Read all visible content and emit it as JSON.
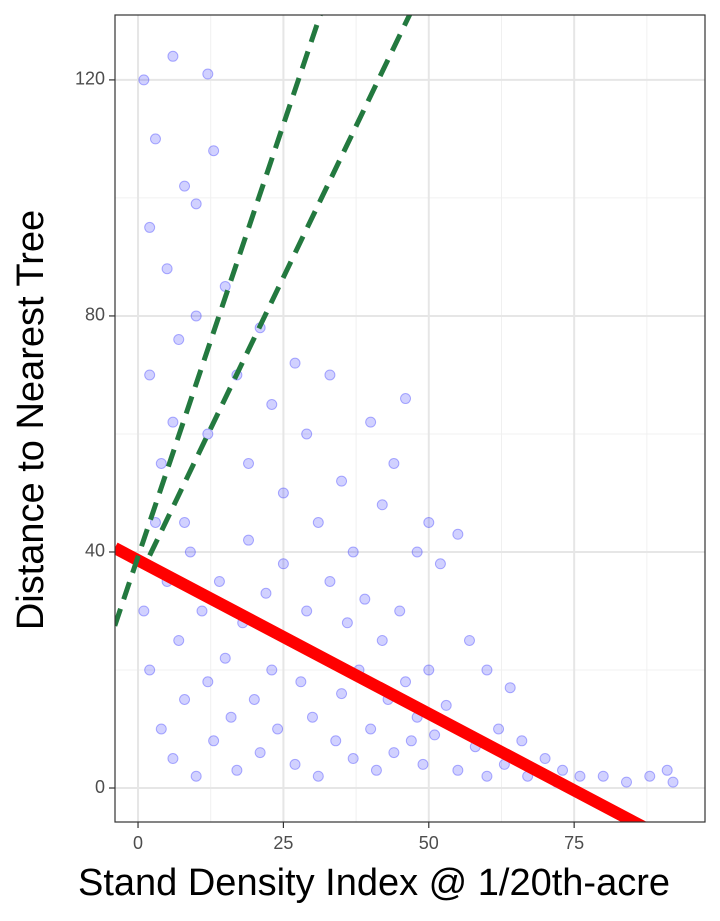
{
  "chart_data": {
    "type": "scatter",
    "x_label": "Stand Density Index @ 1/20th-acre",
    "y_label": "Distance to Nearest Tree",
    "xlim": [
      -3.96,
      97.5
    ],
    "ylim": [
      -5.76,
      131
    ],
    "xticks": [
      0,
      25,
      50,
      75
    ],
    "yticks": [
      0,
      40,
      80,
      120
    ],
    "minor_xticks": [
      12.5,
      37.5,
      62.5,
      87.5
    ],
    "minor_yticks": [
      20,
      60,
      100
    ],
    "grid": true,
    "series": [
      {
        "type": "scatter",
        "color": "#0000ff",
        "x": [
          1,
          2,
          3,
          5,
          6,
          7,
          8,
          10,
          12,
          13,
          2,
          4,
          6,
          8,
          10,
          12,
          15,
          17,
          19,
          21,
          23,
          25,
          27,
          29,
          31,
          33,
          35,
          37,
          40,
          42,
          44,
          46,
          48,
          50,
          52,
          55,
          57,
          60,
          62,
          64,
          66,
          70,
          73,
          76,
          80,
          84,
          88,
          91,
          92,
          1,
          2,
          3,
          4,
          5,
          6,
          7,
          8,
          9,
          10,
          11,
          12,
          13,
          14,
          15,
          16,
          17,
          18,
          19,
          20,
          21,
          22,
          23,
          24,
          25,
          26,
          27,
          28,
          29,
          30,
          31,
          32,
          33,
          34,
          35,
          36,
          37,
          38,
          39,
          40,
          41,
          42,
          43,
          44,
          45,
          46,
          47,
          48,
          49,
          50,
          51,
          53,
          55,
          58,
          60,
          63,
          67,
          72
        ],
        "values": [
          120,
          95,
          110,
          88,
          124,
          76,
          102,
          99,
          121,
          108,
          70,
          55,
          62,
          45,
          80,
          60,
          85,
          70,
          55,
          78,
          65,
          50,
          72,
          60,
          45,
          70,
          52,
          40,
          62,
          48,
          55,
          66,
          40,
          45,
          38,
          43,
          25,
          20,
          10,
          17,
          8,
          5,
          3,
          2,
          2,
          1,
          2,
          3,
          1,
          30,
          20,
          45,
          10,
          35,
          5,
          25,
          15,
          40,
          2,
          30,
          18,
          8,
          35,
          22,
          12,
          3,
          28,
          42,
          15,
          6,
          33,
          20,
          10,
          38,
          25,
          4,
          18,
          30,
          12,
          2,
          22,
          35,
          8,
          16,
          28,
          5,
          20,
          32,
          10,
          3,
          25,
          15,
          6,
          30,
          18,
          8,
          12,
          4,
          20,
          9,
          14,
          3,
          7,
          2,
          4,
          2,
          1
        ]
      },
      {
        "type": "line",
        "color": "#ff0000",
        "width": 12,
        "x": [
          -4,
          90
        ],
        "values": [
          40.68,
          -8.2
        ]
      },
      {
        "type": "line",
        "color": "#23793f",
        "width": 5,
        "dash": true,
        "x": [
          -4,
          35
        ],
        "values": [
          27.48,
          141.75
        ]
      },
      {
        "type": "line",
        "color": "#23793f",
        "width": 5,
        "dash": true,
        "x": [
          2,
          50
        ],
        "values": [
          39.4,
          137.8
        ]
      }
    ]
  }
}
